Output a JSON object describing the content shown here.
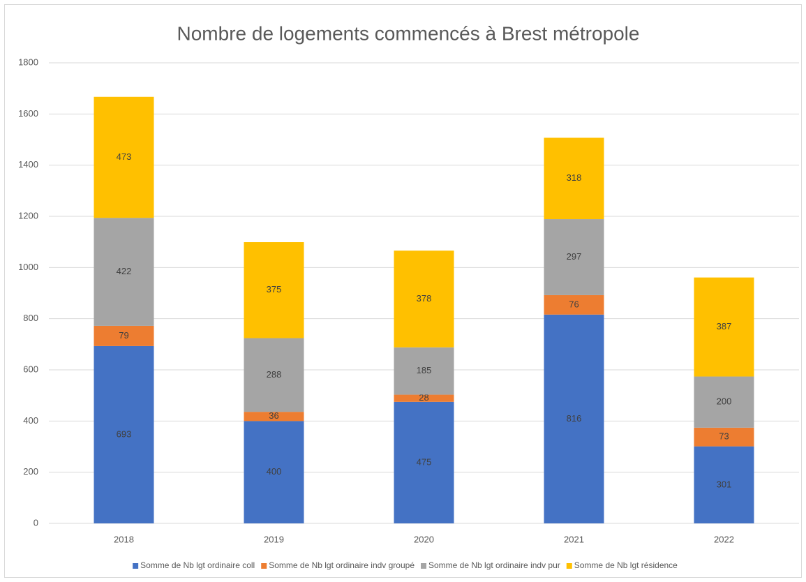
{
  "chart_data": {
    "type": "stacked_bar",
    "title": "Nombre de logements commencés à Brest métropole",
    "categories": [
      "2018",
      "2019",
      "2020",
      "2021",
      "2022"
    ],
    "series": [
      {
        "name": "Somme de Nb lgt ordinaire coll",
        "color": "#4472c4",
        "values": [
          693,
          400,
          475,
          816,
          301
        ]
      },
      {
        "name": "Somme de Nb lgt ordinaire indv groupé",
        "color": "#ed7d31",
        "values": [
          79,
          36,
          28,
          76,
          73
        ]
      },
      {
        "name": "Somme de Nb lgt ordinaire indv pur",
        "color": "#a5a5a5",
        "values": [
          422,
          288,
          185,
          297,
          200
        ]
      },
      {
        "name": "Somme de Nb lgt résidence",
        "color": "#ffc000",
        "values": [
          473,
          375,
          378,
          318,
          387
        ]
      }
    ],
    "ylim": [
      0,
      1800
    ],
    "yticks": [
      0,
      200,
      400,
      600,
      800,
      1000,
      1200,
      1400,
      1600,
      1800
    ],
    "grid": true,
    "legend": "bottom"
  }
}
